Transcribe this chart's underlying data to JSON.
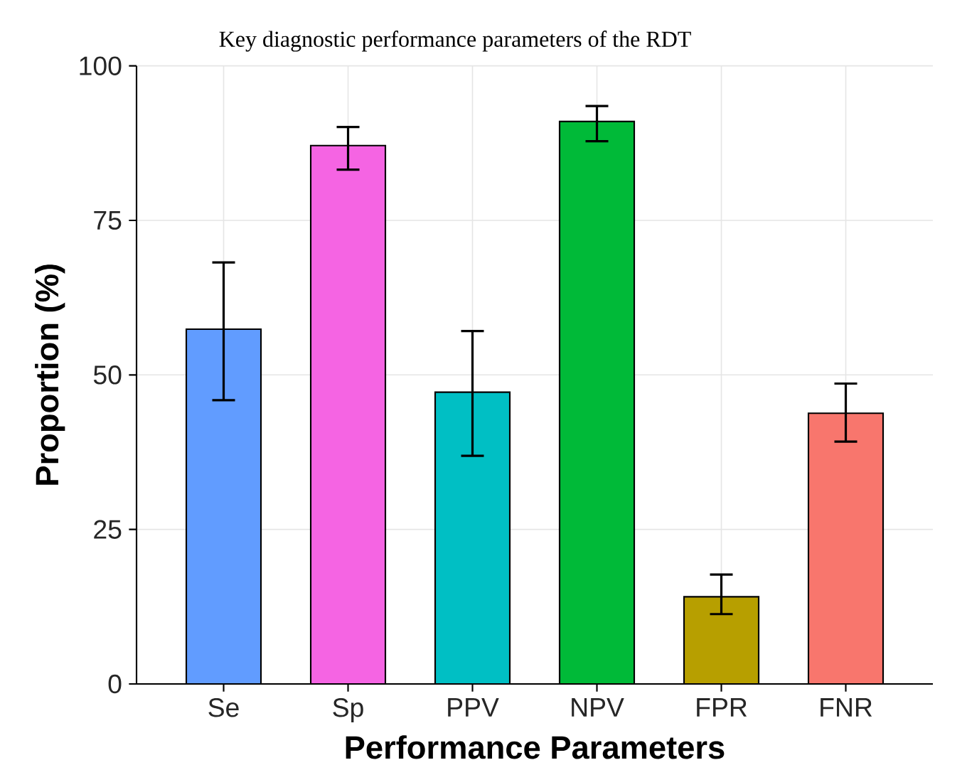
{
  "chart_data": {
    "type": "bar",
    "title": "Key diagnostic performance parameters of the RDT",
    "xlabel": "Performance Parameters",
    "ylabel": "Proportion (%)",
    "categories": [
      "Se",
      "Sp",
      "PPV",
      "NPV",
      "FPR",
      "FNR"
    ],
    "values": [
      57.4,
      87.1,
      47.2,
      91.0,
      14.1,
      43.8
    ],
    "errors": [
      [
        45.9,
        68.2
      ],
      [
        83.2,
        90.1
      ],
      [
        36.9,
        57.1
      ],
      [
        87.8,
        93.5
      ],
      [
        11.3,
        17.7
      ],
      [
        39.2,
        48.6
      ]
    ],
    "colors": [
      "#619cff",
      "#f564e3",
      "#00bfc4",
      "#00ba38",
      "#b79f00",
      "#f8766d"
    ],
    "ylim": [
      0,
      100
    ],
    "yticks": [
      0,
      25,
      50,
      75,
      100
    ],
    "grid": true
  }
}
